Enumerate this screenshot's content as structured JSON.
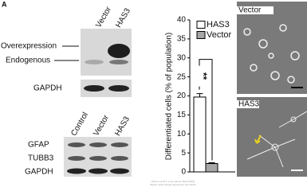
{
  "panel_label": "A",
  "blot_top": {
    "columns": [
      "Vector",
      "HAS3"
    ],
    "rows": [
      "Overexpression",
      "Endogenous"
    ],
    "loading": "GAPDH"
  },
  "blot_bottom": {
    "columns": [
      "Control",
      "Vector",
      "HAS3"
    ],
    "rows": [
      "GFAP",
      "TUBB3",
      "GAPDH"
    ]
  },
  "micrographs": [
    "Vector",
    "HAS3"
  ],
  "credit": [
    "Photo Lee M.J. et al. Cancer Med (2019)",
    "Shown under license agreement via CiteAb"
  ],
  "chart_data": {
    "type": "bar",
    "ylabel": "Differentiated cells (% of population)",
    "categories": [
      null
    ],
    "series": [
      {
        "name": "HAS3",
        "color": "#ffffff",
        "values": [
          19.7
        ],
        "errors": [
          0.9
        ]
      },
      {
        "name": "Vector",
        "color": "#a6a6a6",
        "values": [
          2.2
        ],
        "errors": [
          0.2
        ]
      }
    ],
    "ylim": [
      0,
      40
    ],
    "yticks": [
      0,
      5,
      10,
      15,
      20,
      25,
      30,
      35,
      40
    ],
    "annotation": "**"
  }
}
